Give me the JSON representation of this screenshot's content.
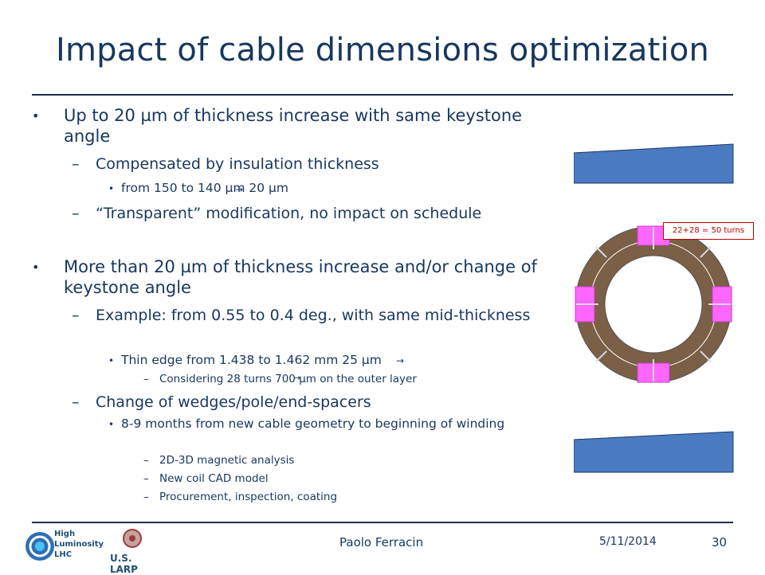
{
  "slide": {
    "title": "Impact of cable dimensions optimization",
    "bullets": [
      {
        "text": "Up to 20 µm of thickness increase with same keystone angle"
      },
      {
        "text": "Compensated by insulation thickness"
      },
      {
        "text": "from 150 to 140 µm  20 µm"
      },
      {
        "text": "“Transparent” modification, no impact on schedule"
      },
      {
        "text": "More than 20 µm of thickness increase and/or change of keystone angle"
      },
      {
        "text": "Example: from 0.55 to 0.4 deg., with same mid-thickness"
      },
      {
        "text": "Thin edge from 1.438 to 1.462 mm  25 µm"
      },
      {
        "text": "Considering 28 turns  700 µm on the outer layer"
      },
      {
        "text": "Change of wedges/pole/end-spacers"
      },
      {
        "text": "8-9 months from new cable geometry to beginning of winding"
      },
      {
        "text": "2D-3D magnetic analysis"
      },
      {
        "text": "New coil CAD model"
      },
      {
        "text": "Procurement, inspection, coating"
      }
    ],
    "figure_label": "22+28 = 50 turns"
  },
  "footer": {
    "author": "Paolo Ferracin",
    "date": "5/11/2014",
    "page": "30",
    "logos": {
      "hl": [
        "High",
        "Luminosity",
        "LHC"
      ],
      "larp": "U.S. LARP"
    }
  }
}
